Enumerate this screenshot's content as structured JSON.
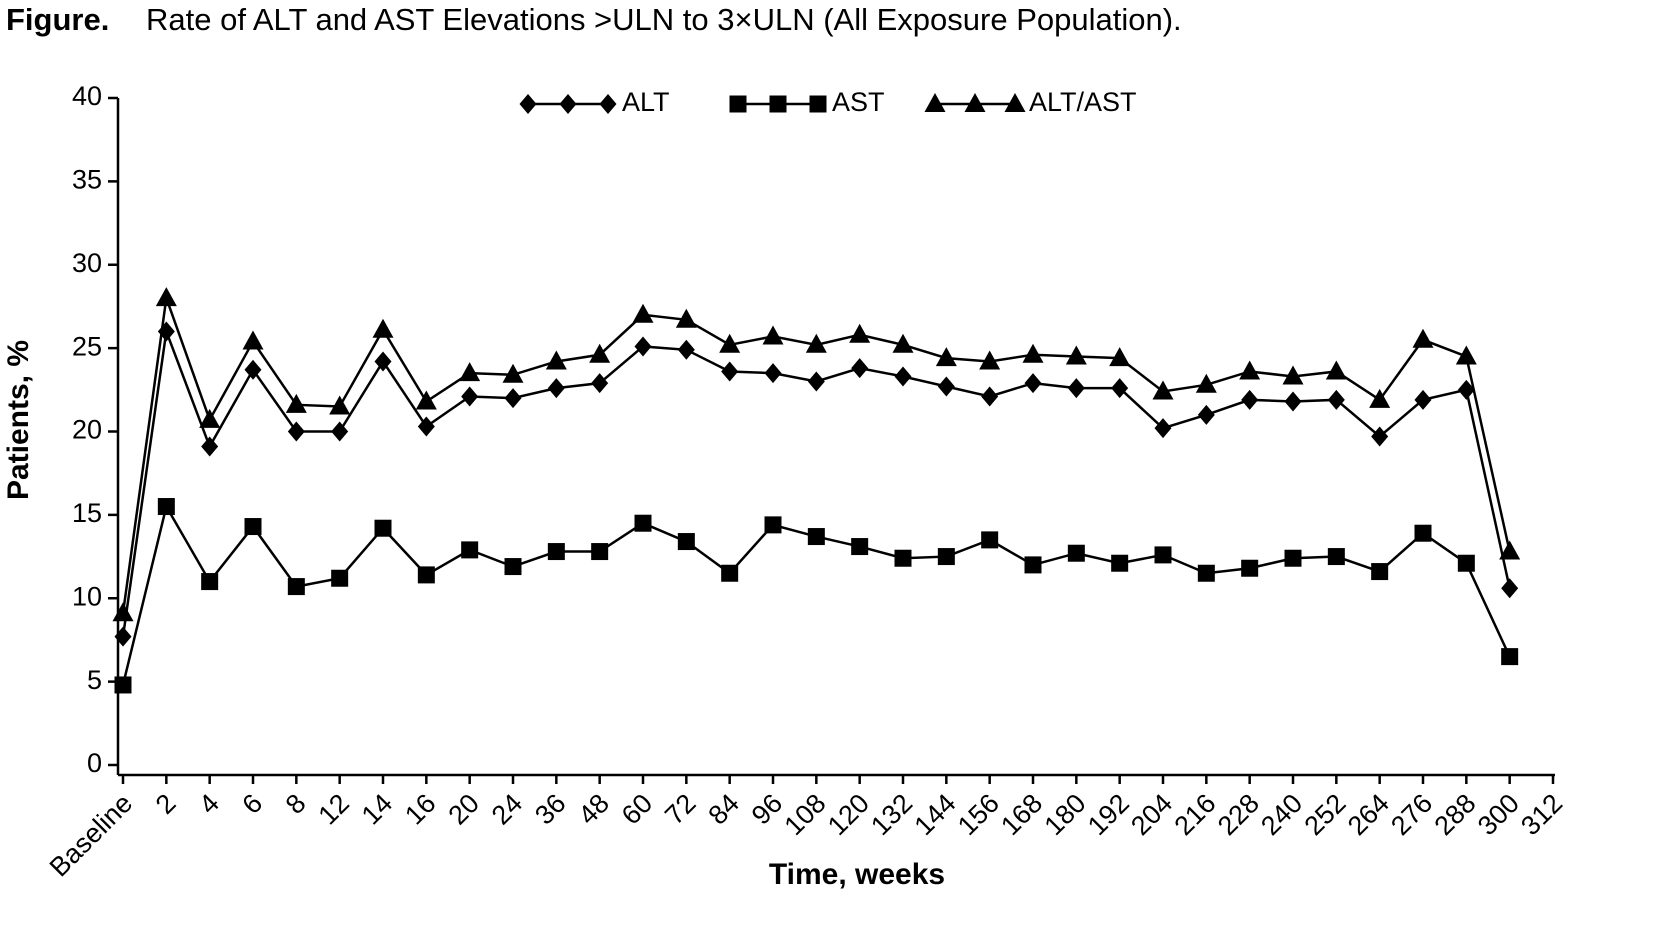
{
  "chart_data": {
    "type": "line",
    "title_prefix": "Figure.",
    "title": "Rate of ALT and AST Elevations >ULN to 3×ULN (All Exposure Population).",
    "x_label": "Time, weeks",
    "y_label": "Patients, %",
    "categories": [
      "Baseline",
      "2",
      "4",
      "6",
      "8",
      "12",
      "14",
      "16",
      "20",
      "24",
      "36",
      "48",
      "60",
      "72",
      "84",
      "96",
      "108",
      "120",
      "132",
      "144",
      "156",
      "168",
      "180",
      "192",
      "204",
      "216",
      "228",
      "240",
      "252",
      "264",
      "276",
      "288",
      "300",
      "312"
    ],
    "series": [
      {
        "name": "ALT",
        "color": "#000000",
        "marker": "diamond",
        "values": [
          7.7,
          26.0,
          19.1,
          23.7,
          20.0,
          20.0,
          24.2,
          20.3,
          22.1,
          22.0,
          22.6,
          22.9,
          25.1,
          24.9,
          23.6,
          23.5,
          23.0,
          23.8,
          23.3,
          22.7,
          22.1,
          22.9,
          22.6,
          22.6,
          20.2,
          21.0,
          21.9,
          21.8,
          21.9,
          19.7,
          21.9,
          22.5,
          10.6,
          null
        ]
      },
      {
        "name": "AST",
        "color": "#000000",
        "marker": "square",
        "values": [
          4.8,
          15.5,
          11.0,
          14.3,
          10.7,
          11.2,
          14.2,
          11.4,
          12.9,
          11.9,
          12.8,
          12.8,
          14.5,
          13.4,
          11.5,
          14.4,
          13.7,
          13.1,
          12.4,
          12.5,
          13.5,
          12.0,
          12.7,
          12.1,
          12.6,
          11.5,
          11.8,
          12.4,
          12.5,
          11.6,
          13.9,
          12.1,
          6.5,
          null
        ]
      },
      {
        "name": "ALT/AST",
        "color": "#000000",
        "marker": "triangle",
        "values": [
          9.1,
          28.0,
          20.7,
          25.4,
          21.6,
          21.5,
          26.1,
          21.8,
          23.5,
          23.4,
          24.2,
          24.6,
          27.0,
          26.7,
          25.2,
          25.7,
          25.2,
          25.8,
          25.2,
          24.4,
          24.2,
          24.6,
          24.5,
          24.4,
          22.4,
          22.8,
          23.6,
          23.3,
          23.6,
          21.9,
          25.5,
          24.5,
          12.8,
          null
        ]
      }
    ],
    "ylim": [
      0,
      40
    ],
    "yticks": [
      0,
      5,
      10,
      15,
      20,
      25,
      30,
      35,
      40
    ],
    "grid": false,
    "legend": "top"
  }
}
